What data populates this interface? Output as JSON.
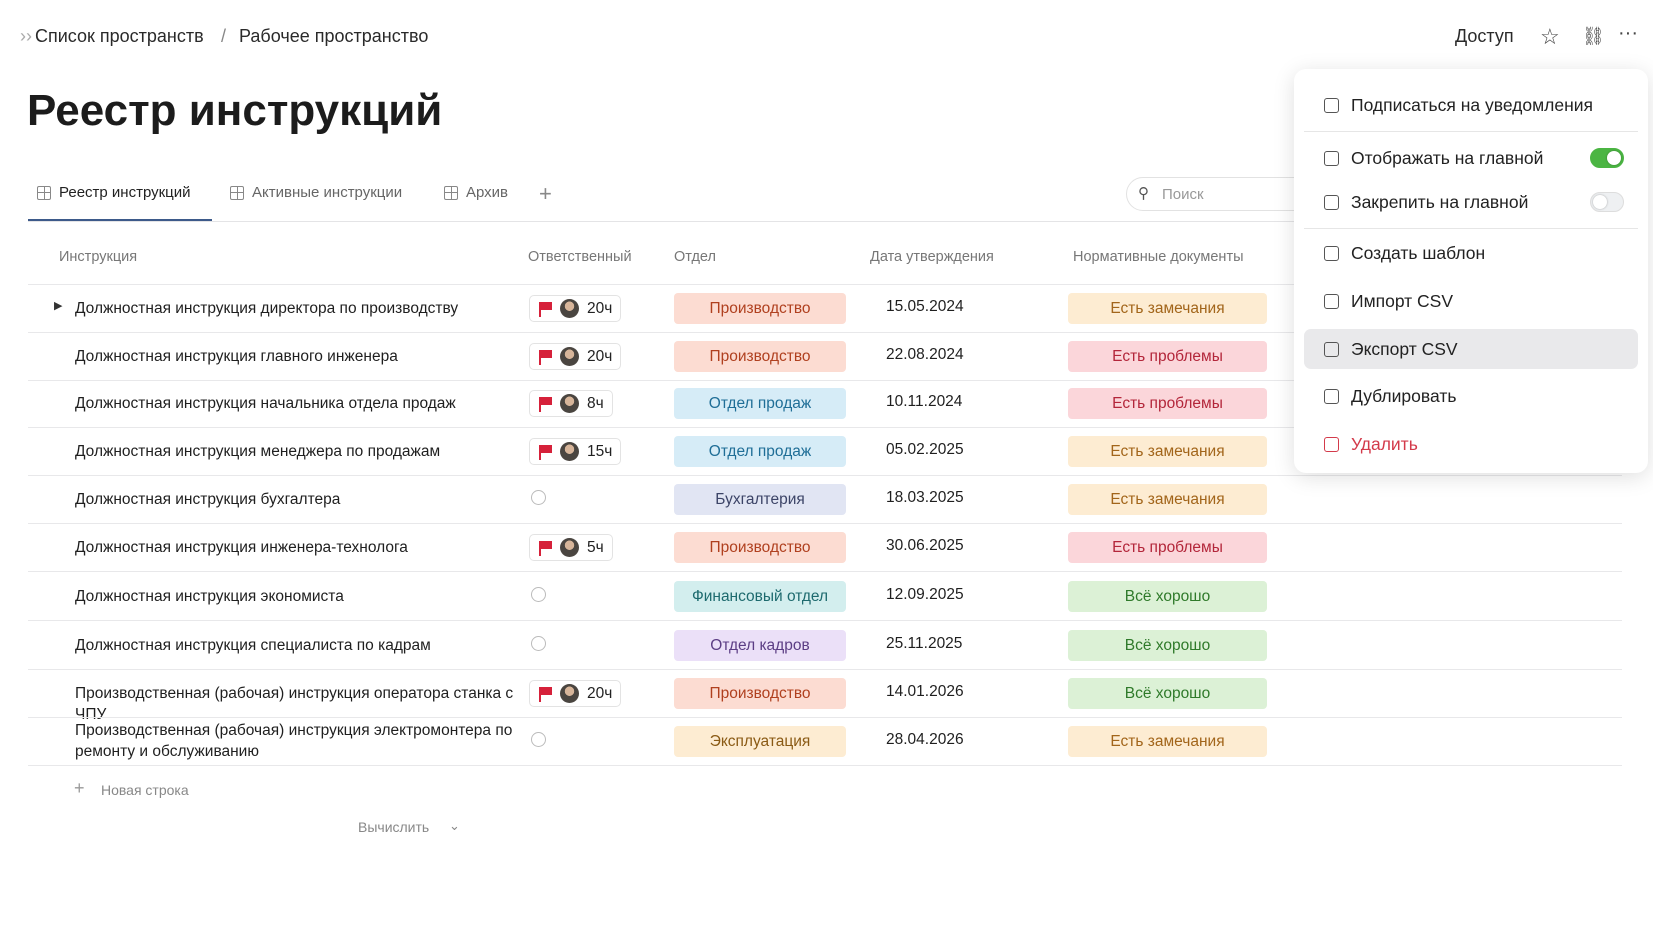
{
  "breadcrumb": [
    "Список пространств",
    "Рабочее пространство"
  ],
  "header_actions": {
    "access": "Доступ"
  },
  "title": "Реестр инструкций",
  "tabs": [
    {
      "label": "Реестр инструкций",
      "active": true
    },
    {
      "label": "Активные инструкции",
      "active": false
    },
    {
      "label": "Архив",
      "active": false
    }
  ],
  "search": {
    "placeholder": "Поиск"
  },
  "table": {
    "columns": [
      "Инструкция",
      "Ответственный",
      "Отдел",
      "Дата утверждения",
      "Нормативные документы"
    ],
    "rows": [
      {
        "name": "Должностная инструкция директора по производству",
        "expandable": true,
        "hours": "20ч",
        "dept": {
          "text": "Производство",
          "bg": "#fcdcd2",
          "fg": "#b0401f"
        },
        "date": "15.05.2024",
        "docs": {
          "text": "Есть замечания",
          "bg": "#fdecd2",
          "fg": "#a2651a"
        }
      },
      {
        "name": "Должностная инструкция главного инженера",
        "expandable": false,
        "hours": "20ч",
        "dept": {
          "text": "Производство",
          "bg": "#fcdcd2",
          "fg": "#b0401f"
        },
        "date": "22.08.2024",
        "docs": {
          "text": "Есть проблемы",
          "bg": "#fbd6da",
          "fg": "#b3263a"
        }
      },
      {
        "name": "Должностная инструкция начальника отдела продаж",
        "expandable": false,
        "hours": "8ч",
        "dept": {
          "text": "Отдел продаж",
          "bg": "#d6ecf7",
          "fg": "#1f6e97"
        },
        "date": "10.11.2024",
        "docs": {
          "text": "Есть проблемы",
          "bg": "#fbd6da",
          "fg": "#b3263a"
        }
      },
      {
        "name": "Должностная инструкция менеджера по продажам",
        "expandable": false,
        "hours": "15ч",
        "dept": {
          "text": "Отдел продаж",
          "bg": "#d6ecf7",
          "fg": "#1f6e97"
        },
        "date": "05.02.2025",
        "docs": {
          "text": "Есть замечания",
          "bg": "#fdecd2",
          "fg": "#a2651a"
        }
      },
      {
        "name": "Должностная инструкция бухгалтера",
        "expandable": false,
        "hours": null,
        "dept": {
          "text": "Бухгалтерия",
          "bg": "#e1e5f3",
          "fg": "#3c4467"
        },
        "date": "18.03.2025",
        "docs": {
          "text": "Есть замечания",
          "bg": "#fdecd2",
          "fg": "#a2651a"
        }
      },
      {
        "name": "Должностная инструкция инженера-технолога",
        "expandable": false,
        "hours": "5ч",
        "dept": {
          "text": "Производство",
          "bg": "#fcdcd2",
          "fg": "#b0401f"
        },
        "date": "30.06.2025",
        "docs": {
          "text": "Есть проблемы",
          "bg": "#fbd6da",
          "fg": "#b3263a"
        }
      },
      {
        "name": "Должностная инструкция экономиста",
        "expandable": false,
        "hours": null,
        "dept": {
          "text": "Финансовый отдел",
          "bg": "#d3eeee",
          "fg": "#1d6a6e"
        },
        "date": "12.09.2025",
        "docs": {
          "text": "Всё хорошо",
          "bg": "#dcf1d6",
          "fg": "#2f7a2a"
        }
      },
      {
        "name": "Должностная инструкция специалиста по кадрам",
        "expandable": false,
        "hours": null,
        "dept": {
          "text": "Отдел кадров",
          "bg": "#ebe0f8",
          "fg": "#5b3d84"
        },
        "date": "25.11.2025",
        "docs": {
          "text": "Всё хорошо",
          "bg": "#dcf1d6",
          "fg": "#2f7a2a"
        }
      },
      {
        "name": "Производственная (рабочая) инструкция оператора станка с ЧПУ",
        "expandable": false,
        "hours": "20ч",
        "dept": {
          "text": "Производство",
          "bg": "#fcdcd2",
          "fg": "#b0401f"
        },
        "date": "14.01.2026",
        "docs": {
          "text": "Всё хорошо",
          "bg": "#dcf1d6",
          "fg": "#2f7a2a"
        }
      },
      {
        "name": "Производственная (рабочая) инструкция электромонтера по ремонту и обслуживанию",
        "expandable": false,
        "hours": null,
        "dept": {
          "text": "Эксплуатация",
          "bg": "#fdecd2",
          "fg": "#8a5a14"
        },
        "date": "28.04.2026",
        "docs": {
          "text": "Есть замечания",
          "bg": "#fdecd2",
          "fg": "#a2651a"
        }
      }
    ],
    "new_row": "Новая строка",
    "calculate": "Вычислить"
  },
  "menu": [
    {
      "label": "Подписаться на уведомления"
    },
    {
      "label": "Отображать на главной",
      "toggle": true
    },
    {
      "label": "Закрепить на главной",
      "toggle": false
    },
    {
      "label": "Создать шаблон"
    },
    {
      "label": "Импорт CSV"
    },
    {
      "label": "Экспорт CSV",
      "highlighted": true
    },
    {
      "label": "Дублировать"
    },
    {
      "label": "Удалить",
      "danger": true
    }
  ]
}
